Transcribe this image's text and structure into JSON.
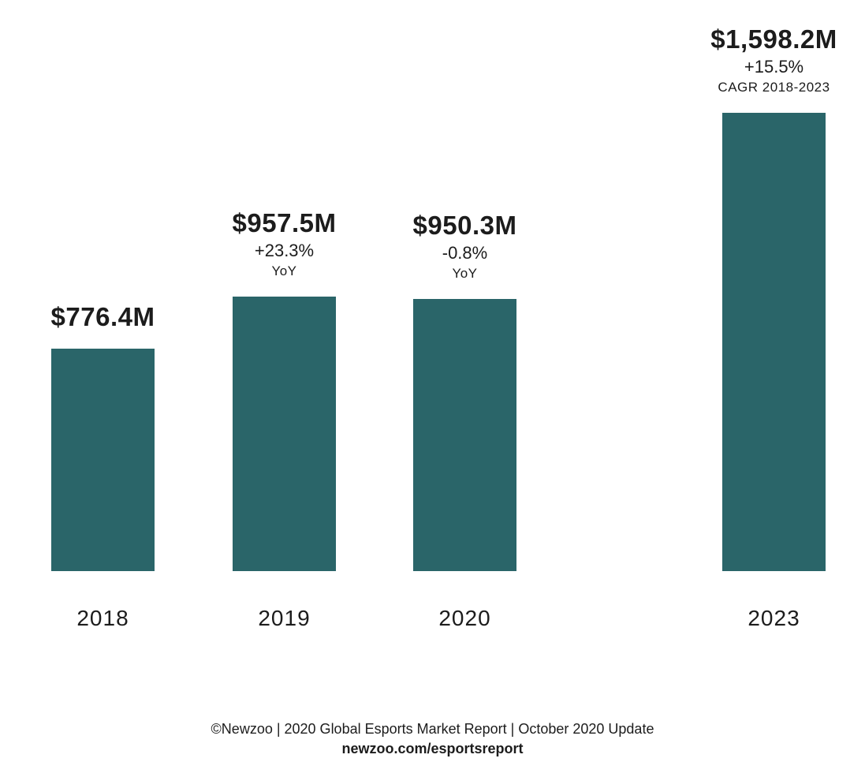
{
  "chart_data": {
    "type": "bar",
    "title": "",
    "categories": [
      "2018",
      "2019",
      "2020",
      "2023"
    ],
    "values": [
      776.4,
      957.5,
      950.3,
      1598.2
    ],
    "value_labels": [
      "$776.4M",
      "$957.5M",
      "$950.3M",
      "$1,598.2M"
    ],
    "change_labels": [
      "",
      "+23.3%",
      "-0.8%",
      "+15.5%"
    ],
    "change_captions": [
      "",
      "YoY",
      "YoY",
      "CAGR 2018-2023"
    ],
    "bar_color": "#2a6569",
    "text_color": "#1c1c1c",
    "background_color": "#ffffff",
    "xlabel": "",
    "ylabel": "",
    "ylim": [
      0,
      1650
    ],
    "grid": false,
    "legend_position": "none"
  },
  "footer": {
    "credit_line": "©Newzoo | 2020 Global Esports Market Report | October 2020 Update",
    "url_line": "newzoo.com/esportsreport"
  }
}
